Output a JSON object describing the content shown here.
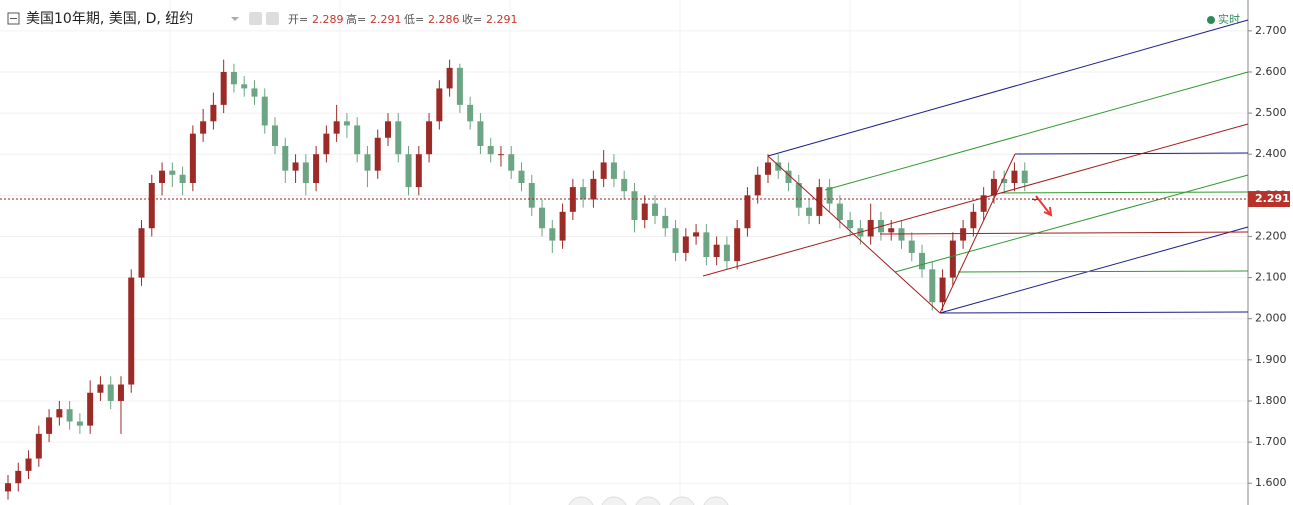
{
  "chart_data": {
    "type": "candlestick",
    "title": "美国10年期, 美国, D, 纽约",
    "ohlc_header": [
      {
        "label": "开=",
        "value": 2.289
      },
      {
        "label": "高=",
        "value": 2.291
      },
      {
        "label": "低=",
        "value": 2.286
      },
      {
        "label": "收=",
        "value": 2.291
      }
    ],
    "status": "实时",
    "last_price": {
      "value": 2.291,
      "label": "2.291"
    },
    "up_color": "#9c2a26",
    "down_color": "#6ba583",
    "ylim": [
      1.547,
      2.775
    ],
    "yticks": [
      {
        "value": 1.6,
        "label": "1.600"
      },
      {
        "value": 1.7,
        "label": "1.700"
      },
      {
        "value": 1.8,
        "label": "1.800"
      },
      {
        "value": 1.9,
        "label": "1.900"
      },
      {
        "value": 2.0,
        "label": "2.000"
      },
      {
        "value": 2.1,
        "label": "2.100"
      },
      {
        "value": 2.2,
        "label": "2.200"
      },
      {
        "value": 2.3,
        "label": "2.300"
      },
      {
        "value": 2.4,
        "label": "2.400"
      },
      {
        "value": 2.5,
        "label": "2.500"
      },
      {
        "value": 2.6,
        "label": "2.600"
      },
      {
        "value": 2.7,
        "label": "2.700"
      }
    ],
    "grid": true,
    "open": [
      1.58,
      1.6,
      1.63,
      1.66,
      1.72,
      1.76,
      1.78,
      1.75,
      1.74,
      1.82,
      1.84,
      1.8,
      1.84,
      2.1,
      2.22,
      2.33,
      2.36,
      2.35,
      2.33,
      2.45,
      2.48,
      2.52,
      2.6,
      2.57,
      2.56,
      2.54,
      2.47,
      2.42,
      2.36,
      2.38,
      2.33,
      2.4,
      2.45,
      2.48,
      2.47,
      2.4,
      2.36,
      2.44,
      2.48,
      2.4,
      2.32,
      2.4,
      2.48,
      2.56,
      2.61,
      2.52,
      2.48,
      2.42,
      2.4,
      2.4,
      2.36,
      2.33,
      2.27,
      2.22,
      2.19,
      2.26,
      2.32,
      2.29,
      2.34,
      2.38,
      2.34,
      2.31,
      2.24,
      2.28,
      2.25,
      2.22,
      2.16,
      2.2,
      2.21,
      2.15,
      2.18,
      2.14,
      2.22,
      2.3,
      2.35,
      2.38,
      2.36,
      2.33,
      2.27,
      2.25,
      2.32,
      2.28,
      2.24,
      2.22,
      2.2,
      2.24,
      2.21,
      2.22,
      2.19,
      2.16,
      2.12,
      2.04,
      2.1,
      2.19,
      2.22,
      2.26,
      2.3,
      2.34,
      2.33,
      2.36,
      2.289
    ],
    "high": [
      1.62,
      1.65,
      1.68,
      1.74,
      1.78,
      1.8,
      1.8,
      1.77,
      1.85,
      1.86,
      1.86,
      1.86,
      2.12,
      2.24,
      2.35,
      2.38,
      2.38,
      2.37,
      2.47,
      2.51,
      2.55,
      2.63,
      2.62,
      2.59,
      2.58,
      2.56,
      2.49,
      2.44,
      2.4,
      2.4,
      2.42,
      2.47,
      2.52,
      2.5,
      2.49,
      2.42,
      2.46,
      2.5,
      2.5,
      2.42,
      2.42,
      2.5,
      2.58,
      2.63,
      2.62,
      2.54,
      2.5,
      2.44,
      2.42,
      2.42,
      2.38,
      2.35,
      2.29,
      2.24,
      2.28,
      2.34,
      2.34,
      2.36,
      2.41,
      2.4,
      2.36,
      2.33,
      2.3,
      2.3,
      2.27,
      2.24,
      2.22,
      2.23,
      2.23,
      2.2,
      2.2,
      2.24,
      2.32,
      2.37,
      2.4,
      2.4,
      2.38,
      2.35,
      2.29,
      2.34,
      2.34,
      2.3,
      2.26,
      2.24,
      2.28,
      2.26,
      2.24,
      2.24,
      2.21,
      2.18,
      2.14,
      2.12,
      2.21,
      2.24,
      2.28,
      2.32,
      2.36,
      2.36,
      2.38,
      2.38,
      2.291
    ],
    "low": [
      1.56,
      1.58,
      1.61,
      1.64,
      1.7,
      1.74,
      1.73,
      1.72,
      1.72,
      1.8,
      1.78,
      1.72,
      1.82,
      2.08,
      2.2,
      2.3,
      2.32,
      2.3,
      2.31,
      2.43,
      2.46,
      2.5,
      2.55,
      2.54,
      2.52,
      2.45,
      2.4,
      2.33,
      2.33,
      2.3,
      2.31,
      2.38,
      2.43,
      2.44,
      2.38,
      2.32,
      2.34,
      2.42,
      2.38,
      2.3,
      2.3,
      2.38,
      2.46,
      2.54,
      2.5,
      2.46,
      2.4,
      2.38,
      2.37,
      2.34,
      2.31,
      2.25,
      2.2,
      2.16,
      2.17,
      2.24,
      2.27,
      2.27,
      2.32,
      2.32,
      2.29,
      2.21,
      2.22,
      2.23,
      2.2,
      2.14,
      2.14,
      2.18,
      2.13,
      2.13,
      2.12,
      2.12,
      2.2,
      2.28,
      2.33,
      2.34,
      2.31,
      2.25,
      2.23,
      2.23,
      2.26,
      2.22,
      2.2,
      2.18,
      2.18,
      2.19,
      2.19,
      2.17,
      2.14,
      2.1,
      2.02,
      2.02,
      2.08,
      2.17,
      2.2,
      2.24,
      2.28,
      2.31,
      2.31,
      2.31,
      2.286
    ],
    "close": [
      1.6,
      1.63,
      1.66,
      1.72,
      1.76,
      1.78,
      1.75,
      1.74,
      1.82,
      1.84,
      1.8,
      1.84,
      2.1,
      2.22,
      2.33,
      2.36,
      2.35,
      2.33,
      2.45,
      2.48,
      2.52,
      2.6,
      2.57,
      2.56,
      2.54,
      2.47,
      2.42,
      2.36,
      2.38,
      2.33,
      2.4,
      2.45,
      2.48,
      2.47,
      2.4,
      2.36,
      2.44,
      2.48,
      2.4,
      2.32,
      2.4,
      2.48,
      2.56,
      2.61,
      2.52,
      2.48,
      2.42,
      2.4,
      2.4,
      2.36,
      2.33,
      2.27,
      2.22,
      2.19,
      2.26,
      2.32,
      2.29,
      2.34,
      2.38,
      2.34,
      2.31,
      2.24,
      2.28,
      2.25,
      2.22,
      2.16,
      2.2,
      2.21,
      2.15,
      2.18,
      2.14,
      2.22,
      2.3,
      2.35,
      2.38,
      2.36,
      2.33,
      2.27,
      2.25,
      2.32,
      2.28,
      2.24,
      2.22,
      2.2,
      2.24,
      2.21,
      2.22,
      2.19,
      2.16,
      2.12,
      2.04,
      2.1,
      2.19,
      2.22,
      2.26,
      2.3,
      2.34,
      2.33,
      2.36,
      2.33,
      2.291
    ]
  }
}
